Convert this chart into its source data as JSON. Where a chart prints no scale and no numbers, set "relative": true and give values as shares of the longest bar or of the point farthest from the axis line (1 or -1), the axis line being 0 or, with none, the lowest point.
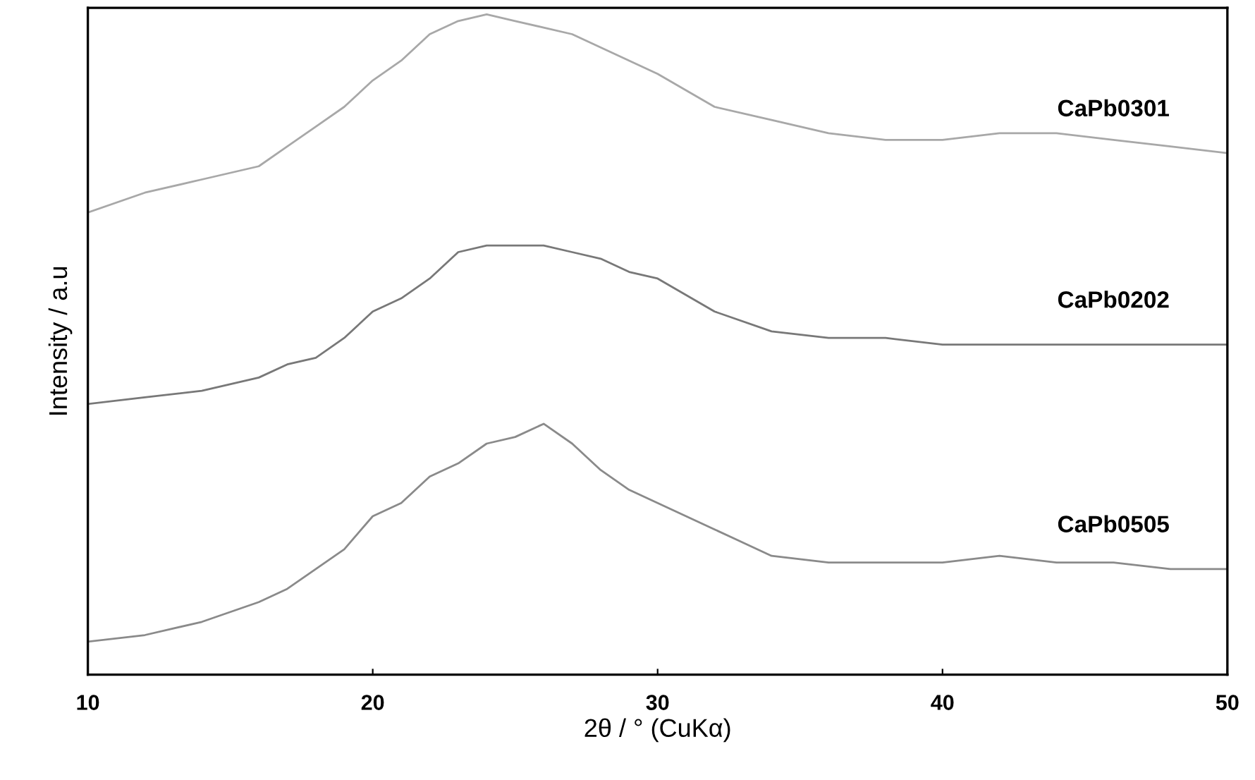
{
  "chart_data": {
    "type": "line",
    "relative": true,
    "xlabel": "2θ / ° (CuKα)",
    "ylabel": "Intensity / a.u",
    "xlim": [
      10,
      50
    ],
    "xticks": [
      10,
      20,
      30,
      40,
      50
    ],
    "tick_labels": "x",
    "x": [
      10,
      12,
      14,
      16,
      17,
      18,
      19,
      20,
      21,
      22,
      23,
      24,
      25,
      26,
      27,
      28,
      29,
      30,
      32,
      34,
      36,
      38,
      40,
      42,
      44,
      46,
      48,
      50
    ],
    "series": [
      {
        "name": "CaPb0301",
        "color": "#a8a8a8",
        "values": [
          0.7,
          0.73,
          0.75,
          0.77,
          0.8,
          0.83,
          0.86,
          0.9,
          0.93,
          0.97,
          0.99,
          1.0,
          0.99,
          0.98,
          0.97,
          0.95,
          0.93,
          0.91,
          0.86,
          0.84,
          0.82,
          0.81,
          0.81,
          0.82,
          0.82,
          0.81,
          0.8,
          0.79
        ]
      },
      {
        "name": "CaPb0202",
        "color": "#787878",
        "values": [
          0.41,
          0.42,
          0.43,
          0.45,
          0.47,
          0.48,
          0.51,
          0.55,
          0.57,
          0.6,
          0.64,
          0.65,
          0.65,
          0.65,
          0.64,
          0.63,
          0.61,
          0.6,
          0.55,
          0.52,
          0.51,
          0.51,
          0.5,
          0.5,
          0.5,
          0.5,
          0.5,
          0.5
        ]
      },
      {
        "name": "CaPb0505",
        "color": "#8a8a8a",
        "values": [
          0.05,
          0.06,
          0.08,
          0.11,
          0.13,
          0.16,
          0.19,
          0.24,
          0.26,
          0.3,
          0.32,
          0.35,
          0.36,
          0.38,
          0.35,
          0.31,
          0.28,
          0.26,
          0.22,
          0.18,
          0.17,
          0.17,
          0.17,
          0.18,
          0.17,
          0.17,
          0.16,
          0.16
        ]
      }
    ]
  }
}
